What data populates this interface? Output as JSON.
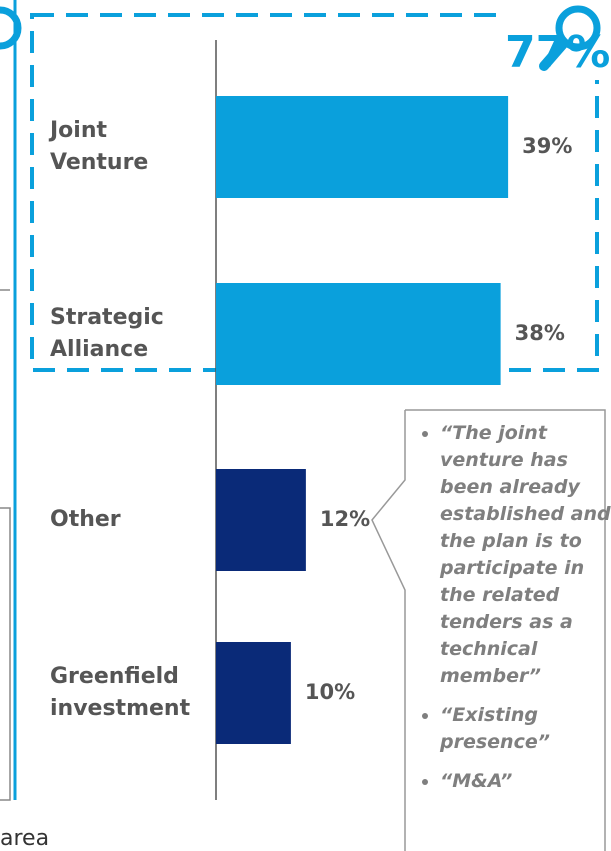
{
  "chart_data": {
    "type": "barh",
    "categories": [
      "Joint Venture",
      "Strategic Alliance",
      "Other",
      "Greenfield investment"
    ],
    "values": [
      39,
      38,
      12,
      10
    ],
    "value_labels": [
      "39%",
      "38%",
      "12%",
      "10%"
    ],
    "colors": [
      "#0aa0dc",
      "#0aa0dc",
      "#0a2a78",
      "#0a2a78"
    ],
    "xlim": [
      0,
      50
    ],
    "annotation": "77%"
  },
  "callout": {
    "quotes": [
      "“The joint venture has been already established and the plan is to participate in the related tenders as a technical member”",
      "“Existing presence”",
      "“M&A”"
    ]
  },
  "footer_fragment": "area"
}
